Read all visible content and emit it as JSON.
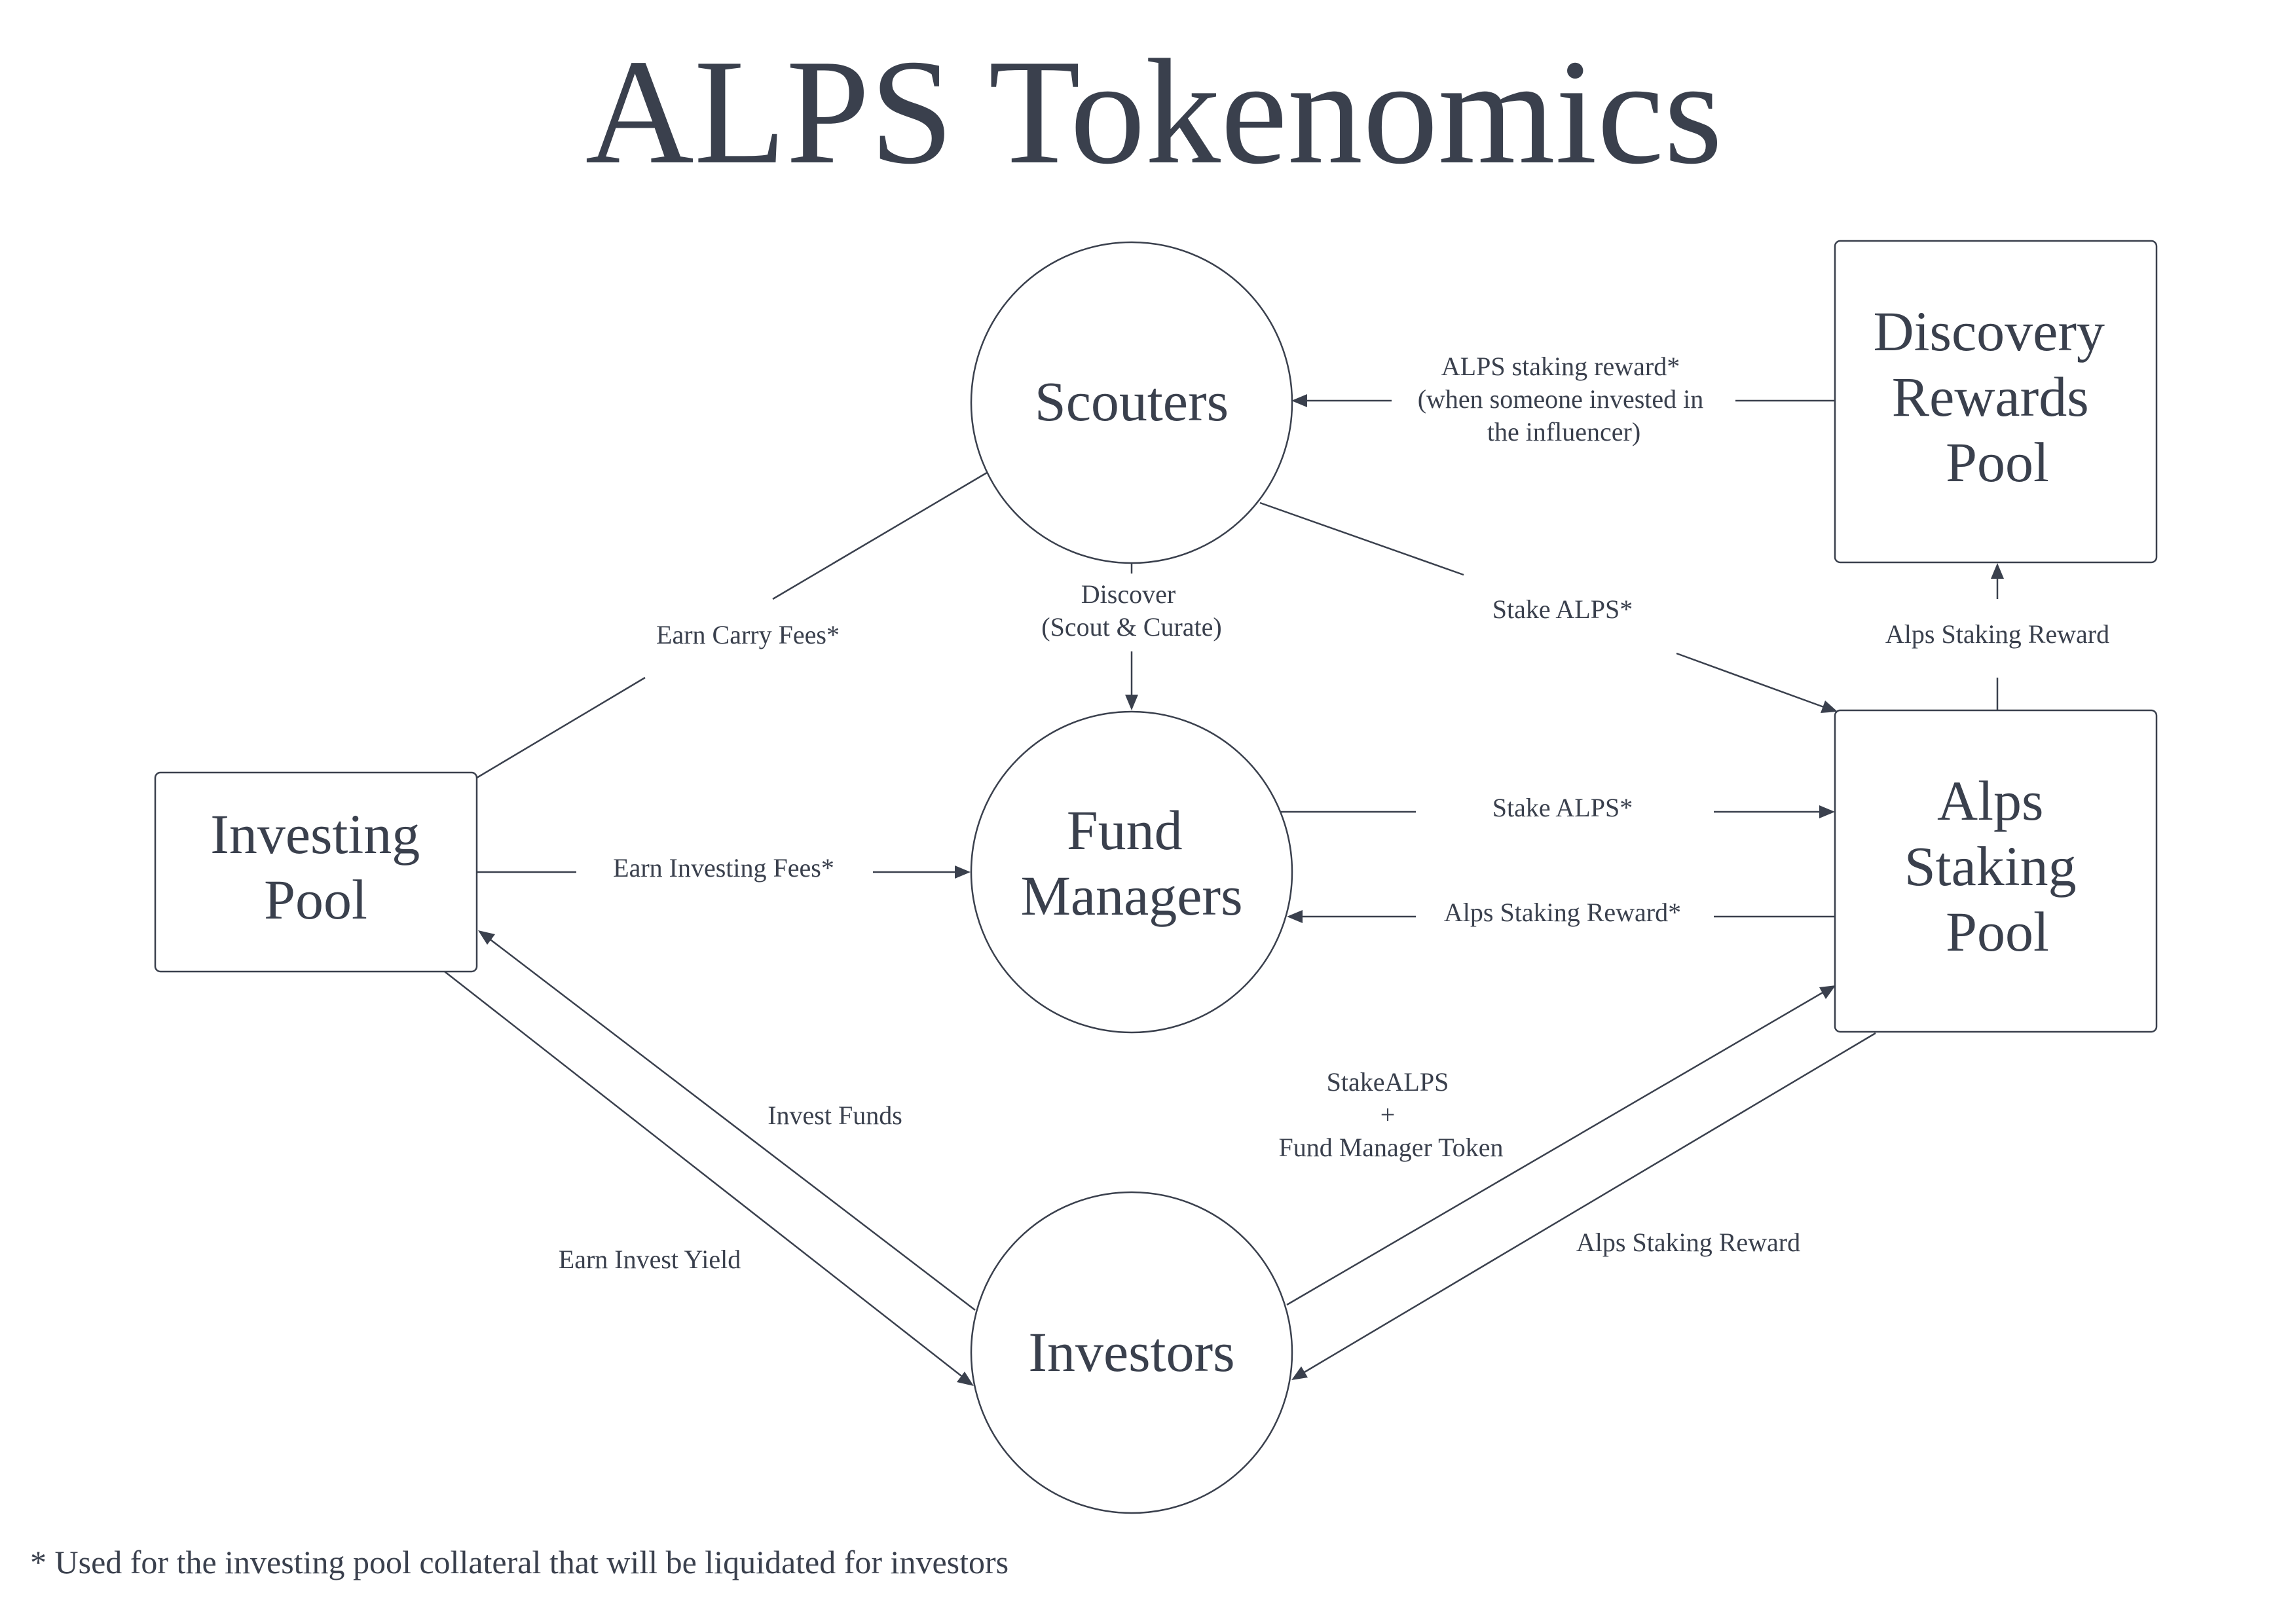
{
  "title": "ALPS Tokenomics",
  "colors": {
    "ink": "#3a404d",
    "background": "#ffffff"
  },
  "nodes": {
    "scouters": "Scouters",
    "fund_managers": [
      "Fund",
      "Managers"
    ],
    "investors": "Investors",
    "investing_pool": [
      "Investing",
      "Pool"
    ],
    "alps_staking_pool": [
      "Alps",
      "Staking",
      "Pool"
    ],
    "discovery_rewards_pool": [
      "Discovery",
      "Rewards",
      "Pool"
    ]
  },
  "edges": {
    "discovery_to_scouters": [
      "ALPS staking reward*",
      "(when someone invested in",
      "the influencer)"
    ],
    "scouters_to_fund_managers": [
      "Discover",
      "(Scout & Curate)"
    ],
    "investing_pool_scouters": "Earn Carry Fees*",
    "scouters_to_staking": "Stake ALPS*",
    "staking_to_discovery": "Alps Staking Reward",
    "fund_managers_to_staking": "Stake ALPS*",
    "staking_to_fund_managers": "Alps Staking Reward*",
    "investing_pool_to_fund_managers": "Earn Investing Fees*",
    "investors_to_investing_pool": "Invest Funds",
    "investing_pool_to_investors": "Earn Invest Yield",
    "investors_to_staking": [
      "StakeALPS",
      "+",
      "Fund Manager Token"
    ],
    "staking_to_investors": "Alps Staking Reward"
  },
  "footnote": "* Used for the investing pool collateral that will be liquidated for investors"
}
